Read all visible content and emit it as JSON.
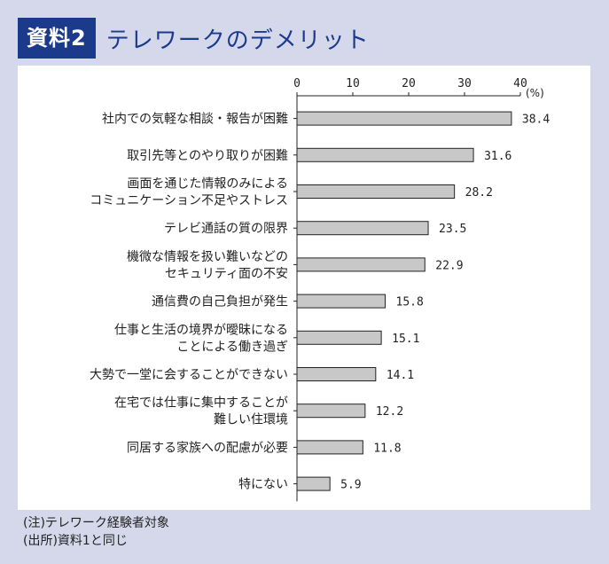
{
  "header": {
    "badge": "資料2",
    "title": "テレワークのデメリット"
  },
  "colors": {
    "bar": "#c8c8c8",
    "bar_stroke": "#222222",
    "accent": "#1b3a8c"
  },
  "chart_data": {
    "type": "bar",
    "orientation": "horizontal",
    "unit": "(%)",
    "xlim": [
      0,
      40
    ],
    "ticks": [
      0,
      10,
      20,
      30,
      40
    ],
    "grid": false,
    "categories": [
      [
        "社内での気軽な相談・報告が困難"
      ],
      [
        "取引先等とのやり取りが困難"
      ],
      [
        "画面を通じた情報のみによる",
        "コミュニケーション不足やストレス"
      ],
      [
        "テレビ通話の質の限界"
      ],
      [
        "機微な情報を扱い難いなどの",
        "セキュリティ面の不安"
      ],
      [
        "通信費の自己負担が発生"
      ],
      [
        "仕事と生活の境界が曖昧になる",
        "ことによる働き過ぎ"
      ],
      [
        "大勢で一堂に会することができない"
      ],
      [
        "在宅では仕事に集中することが",
        "難しい住環境"
      ],
      [
        "同居する家族への配慮が必要"
      ],
      [
        "特にない"
      ]
    ],
    "values": [
      38.4,
      31.6,
      28.2,
      23.5,
      22.9,
      15.8,
      15.1,
      14.1,
      12.2,
      11.8,
      5.9
    ],
    "value_labels": [
      "38.4",
      "31.6",
      "28.2",
      "23.5",
      "22.9",
      "15.8",
      "15.1",
      "14.1",
      "12.2",
      "11.8",
      "5.9"
    ]
  },
  "notes": {
    "note": "(注)テレワーク経験者対象",
    "source": "(出所)資料1と同じ"
  }
}
